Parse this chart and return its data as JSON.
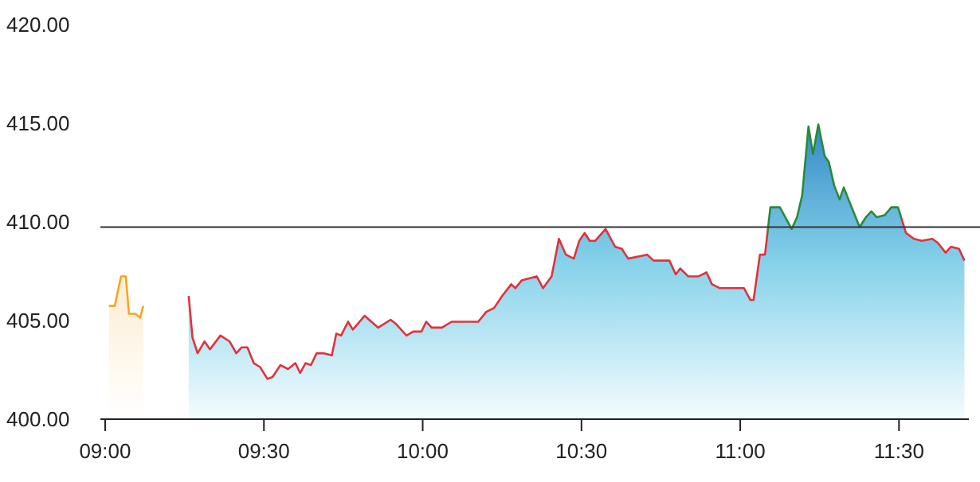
{
  "chart_data": {
    "type": "area",
    "xlim": [
      8.985,
      11.72
    ],
    "ylim": [
      400,
      420
    ],
    "xticks": [
      {
        "value": 9,
        "label": "09:00"
      },
      {
        "value": 9.5,
        "label": "09:30"
      },
      {
        "value": 10,
        "label": "10:00"
      },
      {
        "value": 10.5,
        "label": "10:30"
      },
      {
        "value": 11,
        "label": "11:00"
      },
      {
        "value": 11.5,
        "label": "11:30"
      }
    ],
    "yticks": [
      {
        "value": 400,
        "label": "400.00"
      },
      {
        "value": 405,
        "label": "405.00"
      },
      {
        "value": 410,
        "label": "410.00"
      },
      {
        "value": 415,
        "label": "415.00"
      },
      {
        "value": 420,
        "label": "420.00"
      }
    ],
    "ref_lines": [
      {
        "axis": "y",
        "value": 409.7,
        "color": "#333333"
      }
    ],
    "series": [
      {
        "color": "#f5a623",
        "x": [
          9.012,
          9.03,
          9.05,
          9.065,
          9.075,
          9.095,
          9.11,
          9.12
        ],
        "values": [
          405.7,
          405.7,
          407.2,
          407.2,
          405.3,
          405.3,
          405.1,
          405.7
        ]
      },
      {
        "color": "#e0323c",
        "x": [
          9.263,
          9.275,
          9.291,
          9.313,
          9.33,
          9.363,
          9.392,
          9.413,
          9.43,
          9.448,
          9.468,
          9.488,
          9.511,
          9.527,
          9.552,
          9.576,
          9.599,
          9.614,
          9.631,
          9.648,
          9.666,
          9.689,
          9.714,
          9.728,
          9.743,
          9.765,
          9.78,
          9.817,
          9.86,
          9.899,
          9.915,
          9.949,
          9.97,
          9.996,
          10.011,
          10.028,
          10.061,
          10.091,
          10.175,
          10.2,
          10.225,
          10.25,
          10.279,
          10.292,
          10.312,
          10.359,
          10.379,
          10.406,
          10.429,
          10.451,
          10.476,
          10.493,
          10.51,
          10.526,
          10.543,
          10.576,
          10.606,
          10.627,
          10.647,
          10.707,
          10.727,
          10.777,
          10.797,
          10.811,
          10.836,
          10.869,
          10.894,
          10.911,
          10.936,
          10.969,
          11.012,
          11.032,
          11.042,
          11.062,
          11.078,
          11.095,
          11.125,
          11.162,
          11.179,
          11.195,
          11.215,
          11.229,
          11.246,
          11.266,
          11.279,
          11.296,
          11.313,
          11.326,
          11.346,
          11.376,
          11.396,
          11.413,
          11.43,
          11.455,
          11.476,
          11.497,
          11.522,
          11.547,
          11.572,
          11.605,
          11.622,
          11.647,
          11.664,
          11.689,
          11.706
        ],
        "values": [
          406.2,
          404.1,
          403.3,
          403.9,
          403.5,
          404.2,
          403.9,
          403.3,
          403.6,
          403.6,
          402.8,
          402.6,
          402.0,
          402.1,
          402.7,
          402.5,
          402.8,
          402.3,
          402.8,
          402.7,
          403.3,
          403.3,
          403.2,
          404.3,
          404.2,
          404.9,
          404.5,
          405.2,
          404.6,
          405.0,
          404.8,
          404.2,
          404.4,
          404.4,
          404.9,
          404.6,
          404.6,
          404.9,
          404.9,
          405.4,
          405.6,
          406.2,
          406.8,
          406.6,
          407.0,
          407.2,
          406.6,
          407.2,
          409.1,
          408.3,
          408.1,
          409.0,
          409.4,
          409.0,
          409.0,
          409.6,
          408.7,
          408.6,
          408.1,
          408.3,
          408.0,
          408.0,
          407.3,
          407.6,
          407.2,
          407.2,
          407.4,
          406.8,
          406.6,
          406.6,
          406.6,
          406.0,
          406.0,
          408.3,
          408.3,
          410.7,
          410.7,
          409.6,
          410.2,
          411.3,
          414.8,
          413.4,
          414.9,
          413.3,
          413.0,
          411.8,
          411.1,
          411.7,
          410.9,
          409.7,
          410.2,
          410.5,
          410.2,
          410.3,
          410.7,
          410.7,
          409.4,
          409.1,
          409.0,
          409.1,
          408.9,
          408.4,
          408.7,
          408.6,
          408.0
        ],
        "colors": [
          "#e0323c",
          "#e0323c",
          "#e0323c",
          "#e0323c",
          "#e0323c",
          "#e0323c",
          "#e0323c",
          "#e0323c",
          "#e0323c",
          "#e0323c",
          "#e0323c",
          "#e0323c",
          "#e0323c",
          "#e0323c",
          "#e0323c",
          "#e0323c",
          "#e0323c",
          "#e0323c",
          "#e0323c",
          "#e0323c",
          "#e0323c",
          "#e0323c",
          "#e0323c",
          "#e0323c",
          "#e0323c",
          "#e0323c",
          "#e0323c",
          "#e0323c",
          "#e0323c",
          "#e0323c",
          "#e0323c",
          "#e0323c",
          "#e0323c",
          "#e0323c",
          "#e0323c",
          "#e0323c",
          "#e0323c",
          "#e0323c",
          "#e0323c",
          "#e0323c",
          "#e0323c",
          "#e0323c",
          "#e0323c",
          "#e0323c",
          "#e0323c",
          "#e0323c",
          "#e0323c",
          "#e0323c",
          "#e0323c",
          "#e0323c",
          "#e0323c",
          "#e0323c",
          "#e0323c",
          "#e0323c",
          "#e0323c",
          "#e0323c",
          "#e0323c",
          "#e0323c",
          "#e0323c",
          "#e0323c",
          "#e0323c",
          "#e0323c",
          "#e0323c",
          "#e0323c",
          "#e0323c",
          "#e0323c",
          "#e0323c",
          "#e0323c",
          "#e0323c",
          "#e0323c",
          "#e0323c",
          "#e0323c",
          "#e0323c",
          "#e0323c",
          "#e0323c",
          "#2a8a3a",
          "#2a8a3a",
          "#2a8a3a",
          "#2a8a3a",
          "#2a8a3a",
          "#2a8a3a",
          "#2a8a3a",
          "#2a8a3a",
          "#2a8a3a",
          "#2a8a3a",
          "#2a8a3a",
          "#2a8a3a",
          "#2a8a3a",
          "#2a8a3a",
          "#2a8a3a",
          "#2a8a3a",
          "#2a8a3a",
          "#2a8a3a",
          "#2a8a3a",
          "#2a8a3a",
          "#2a8a3a",
          "#e0323c",
          "#e0323c",
          "#e0323c",
          "#e0323c",
          "#e0323c",
          "#e0323c",
          "#e0323c",
          "#e0323c",
          "#e0323c"
        ]
      }
    ]
  }
}
